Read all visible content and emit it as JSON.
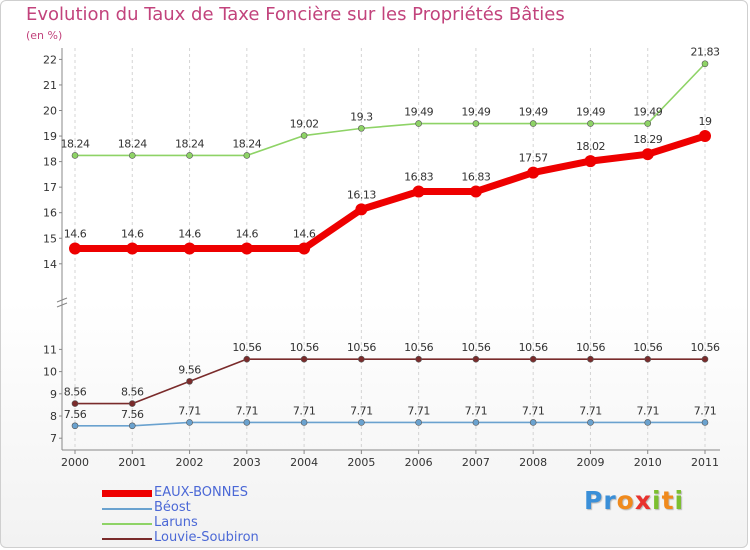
{
  "header": {
    "title": "Evolution du Taux de Taxe Foncière sur les Propriétés Bâties",
    "unit": "(en %)"
  },
  "logo": {
    "letters": [
      "P",
      "r",
      "o",
      "x",
      "i",
      "t",
      "i"
    ],
    "colors": [
      "#3a8fd8",
      "#3a8fd8",
      "#f08a1c",
      "#e8322e",
      "#7cbf2f",
      "#f08a1c",
      "#7cbf2f"
    ]
  },
  "chart_data": {
    "type": "line",
    "title": "Evolution du Taux de Taxe Foncière sur les Propriétés Bâties",
    "ylabel": "(en %)",
    "xlabel": "",
    "x": [
      "2000",
      "2001",
      "2002",
      "2003",
      "2004",
      "2005",
      "2006",
      "2007",
      "2008",
      "2009",
      "2010",
      "2011"
    ],
    "y_ticks": [
      7,
      8,
      9,
      10,
      11,
      14,
      15,
      16,
      17,
      18,
      19,
      20,
      21,
      22
    ],
    "series": [
      {
        "name": "EAUX-BONNES",
        "color": "#ee0000",
        "values": [
          14.6,
          14.6,
          14.6,
          14.6,
          14.6,
          16.13,
          16.83,
          16.83,
          17.57,
          18.02,
          18.29,
          19
        ],
        "labels": [
          "14.6",
          "14.6",
          "14.6",
          "14.6",
          "14.6",
          "16.13",
          "16.83",
          "16.83",
          "17.57",
          "18.02",
          "18.29",
          "19"
        ]
      },
      {
        "name": "Béost",
        "color": "#6aa2cf",
        "values": [
          7.56,
          7.56,
          7.71,
          7.71,
          7.71,
          7.71,
          7.71,
          7.71,
          7.71,
          7.71,
          7.71,
          7.71
        ],
        "labels": [
          "7.56",
          "7.56",
          "7.71",
          "7.71",
          "7.71",
          "7.71",
          "7.71",
          "7.71",
          "7.71",
          "7.71",
          "7.71",
          "7.71"
        ]
      },
      {
        "name": "Laruns",
        "color": "#8ed366",
        "values": [
          18.24,
          18.24,
          18.24,
          18.24,
          19.02,
          19.3,
          19.49,
          19.49,
          19.49,
          19.49,
          19.49,
          21.83
        ],
        "labels": [
          "18.24",
          "18.24",
          "18.24",
          "18.24",
          "19.02",
          "19.3",
          "19.49",
          "19.49",
          "19.49",
          "19.49",
          "19.49",
          "21.83"
        ]
      },
      {
        "name": "Louvie-Soubiron",
        "color": "#7a2b2b",
        "values": [
          8.56,
          8.56,
          9.56,
          10.56,
          10.56,
          10.56,
          10.56,
          10.56,
          10.56,
          10.56,
          10.56,
          10.56
        ],
        "labels": [
          "8.56",
          "8.56",
          "9.56",
          "10.56",
          "10.56",
          "10.56",
          "10.56",
          "10.56",
          "10.56",
          "10.56",
          "10.56",
          "10.56"
        ]
      }
    ],
    "legend": [
      "EAUX-BONNES",
      "Béost",
      "Laruns",
      "Louvie-Soubiron"
    ],
    "legend_position": "bottom-left",
    "grid": "vertical-dashed"
  }
}
